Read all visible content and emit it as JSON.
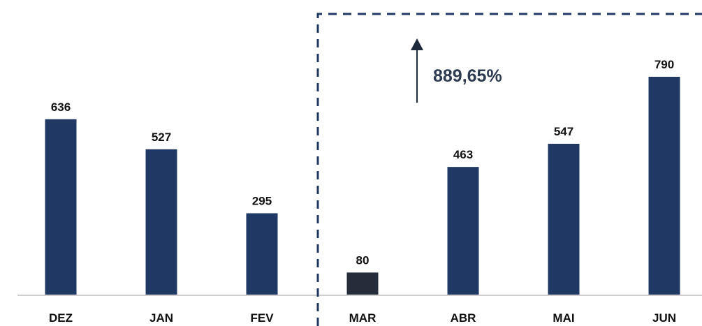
{
  "chart_data": {
    "type": "bar",
    "categories": [
      "DEZ",
      "JAN",
      "FEV",
      "MAR",
      "ABR",
      "MAI",
      "JUN"
    ],
    "values": [
      636,
      527,
      295,
      80,
      463,
      547,
      790
    ],
    "colors": [
      "#203864",
      "#203864",
      "#203864",
      "#262d3a",
      "#203864",
      "#203864",
      "#203864"
    ],
    "annotation": "889,65%"
  }
}
